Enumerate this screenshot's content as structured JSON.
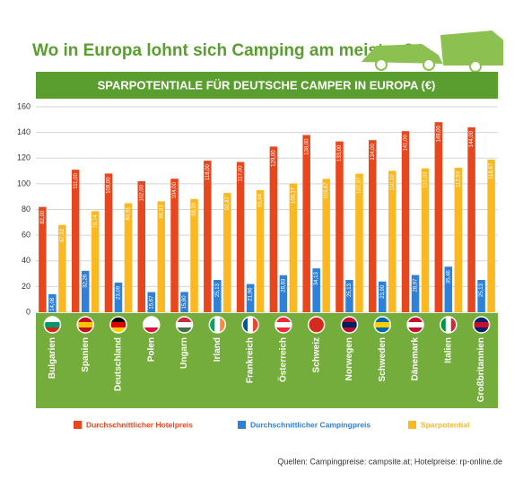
{
  "chart_data": {
    "type": "bar",
    "title": "Wo in Europa lohnt sich Camping am meisten?",
    "subtitle": "SPARPOTENTIALE FÜR DEUTSCHE CAMPER IN EUROPA (€)",
    "source": "Quellen: Campingpreise: campsite.at; Hotelpreise: rp-online.de",
    "categories": [
      "Bulgarien",
      "Spanien",
      "Deutschland",
      "Polen",
      "Ungarn",
      "Irland",
      "Frankreich",
      "Österreich",
      "Schweiz",
      "Norwegen",
      "Schweden",
      "Dänemark",
      "Italien",
      "Großbritannien"
    ],
    "series": [
      {
        "name": "Durchschnittlicher Hotelpreis",
        "color": "#e8471e",
        "values": [
          82,
          111,
          108,
          102,
          104,
          118,
          117,
          129,
          138,
          133,
          134,
          141,
          148,
          144
        ],
        "value_labels": [
          "82,00",
          "111,00",
          "108,00",
          "102,00",
          "104,00",
          "118,00",
          "117,00",
          "129,00",
          "138,00",
          "133,00",
          "134,00",
          "141,00",
          "148,00",
          "144,00"
        ]
      },
      {
        "name": "Durchschnittlicher Campingpreis",
        "color": "#2f80d8",
        "values": [
          14.08,
          32.26,
          23.09,
          15.67,
          15.8,
          25.13,
          21.96,
          28.83,
          34.13,
          25.13,
          23.9,
          28.97,
          35.46,
          25.13
        ],
        "value_labels": [
          "14,08",
          "32,26",
          "23,09",
          "15,67",
          "15,80",
          "25,13",
          "21,96",
          "28,83",
          "34,13",
          "25,13",
          "23,90",
          "28,97",
          "35,46",
          "25,13"
        ]
      },
      {
        "name": "Sparpotential",
        "color": "#fbb820",
        "values": [
          67.92,
          78.74,
          84.91,
          86.33,
          88.2,
          92.87,
          95.04,
          100.17,
          103.87,
          107.87,
          110.1,
          112.03,
          112.54,
          118.87
        ],
        "value_labels": [
          "67,92",
          "78,74",
          "84,91",
          "86,33",
          "88,20",
          "92,87",
          "95,04",
          "100,17",
          "103,87",
          "107,87",
          "110,10",
          "112,03",
          "112,54",
          "118,87"
        ]
      }
    ],
    "ylim": [
      0,
      160
    ],
    "yticks": [
      0,
      20,
      40,
      60,
      80,
      100,
      120,
      140,
      160
    ],
    "grid": true
  }
}
